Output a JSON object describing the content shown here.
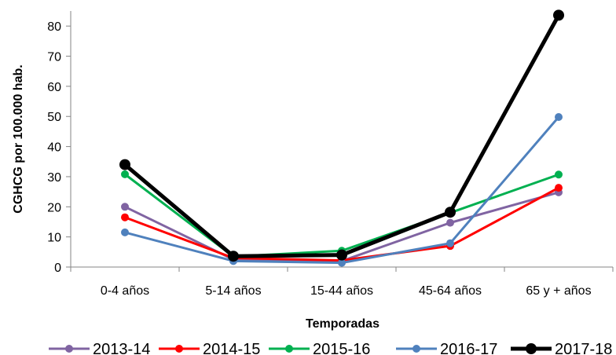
{
  "chart_data": {
    "type": "line",
    "title": "",
    "xlabel": "Temporadas",
    "ylabel": "CGHCG por 100.000 hab.",
    "ylim": [
      0,
      85
    ],
    "yticks": [
      0,
      10,
      20,
      30,
      40,
      50,
      60,
      70,
      80
    ],
    "grid": false,
    "legend_position": "bottom",
    "categories": [
      "0-4 años",
      "5-14 años",
      "15-44 años",
      "45-64 años",
      "65 y + años"
    ],
    "series": [
      {
        "name": "2013-14",
        "color": "#8064A2",
        "values": [
          20.0,
          2.5,
          2.0,
          14.7,
          24.8
        ]
      },
      {
        "name": "2014-15",
        "color": "#FF0000",
        "values": [
          16.5,
          3.0,
          2.2,
          7.0,
          26.3
        ]
      },
      {
        "name": "2015-16",
        "color": "#00B050",
        "values": [
          30.8,
          3.5,
          5.4,
          18.0,
          30.7
        ]
      },
      {
        "name": "2016-17",
        "color": "#4F81BD",
        "values": [
          11.5,
          2.0,
          1.4,
          7.9,
          49.8
        ]
      },
      {
        "name": "2017-18",
        "color": "#000000",
        "values": [
          34.0,
          3.6,
          4.0,
          18.2,
          83.6
        ]
      }
    ]
  }
}
